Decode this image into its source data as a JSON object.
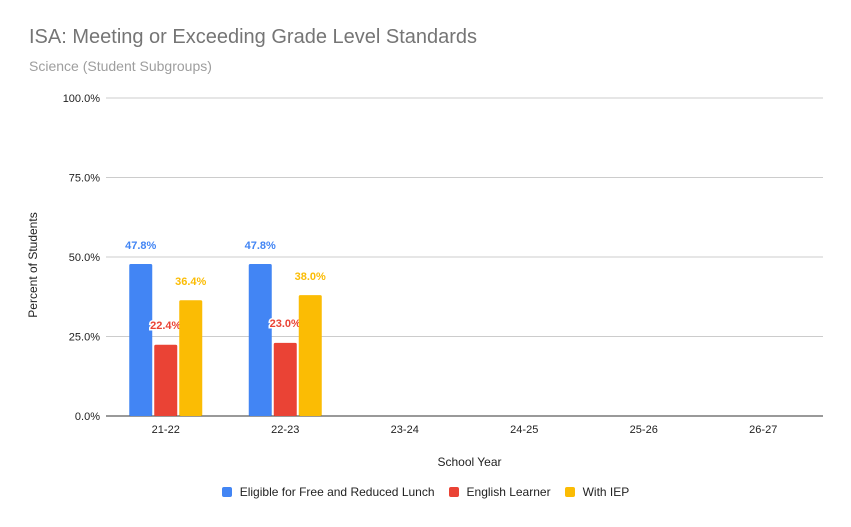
{
  "chart_data": {
    "type": "bar",
    "title": "ISA: Meeting or Exceeding Grade Level Standards",
    "subtitle": "Science (Student Subgroups)",
    "xlabel": "School Year",
    "ylabel": "Percent of Students",
    "ylim": [
      0,
      100
    ],
    "yticks": [
      "0.0%",
      "25.0%",
      "50.0%",
      "75.0%",
      "100.0%"
    ],
    "categories": [
      "21-22",
      "22-23",
      "23-24",
      "24-25",
      "25-26",
      "26-27"
    ],
    "series": [
      {
        "name": "Eligible for Free and Reduced Lunch",
        "color": "#4285f4",
        "values": [
          47.8,
          47.8,
          null,
          null,
          null,
          null
        ],
        "labels": [
          "47.8%",
          "47.8%"
        ]
      },
      {
        "name": "English Learner",
        "color": "#ea4335",
        "values": [
          22.4,
          23.0,
          null,
          null,
          null,
          null
        ],
        "labels": [
          "22.4%",
          "23.0%"
        ]
      },
      {
        "name": "With IEP",
        "color": "#fbbc04",
        "values": [
          36.4,
          38.0,
          null,
          null,
          null,
          null
        ],
        "labels": [
          "36.4%",
          "38.0%"
        ]
      }
    ],
    "grid": true,
    "legend_position": "bottom"
  }
}
